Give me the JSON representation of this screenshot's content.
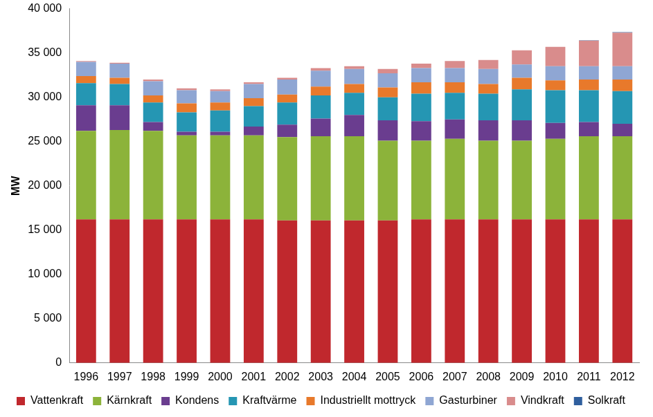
{
  "chart_data": {
    "type": "bar",
    "stacked": true,
    "grid": false,
    "legend": "bottom",
    "y_label": "MW",
    "categories": [
      "1996",
      "1997",
      "1998",
      "1999",
      "2000",
      "2001",
      "2002",
      "2003",
      "2004",
      "2005",
      "2006",
      "2007",
      "2008",
      "2009",
      "2010",
      "2011",
      "2012"
    ],
    "ylim": [
      0,
      40000
    ],
    "yticks": [
      {
        "value": 0,
        "label": "0"
      },
      {
        "value": 5000,
        "label": "5 000"
      },
      {
        "value": 10000,
        "label": "10 000"
      },
      {
        "value": 15000,
        "label": "15 000"
      },
      {
        "value": 20000,
        "label": "20 000"
      },
      {
        "value": 25000,
        "label": "25 000"
      },
      {
        "value": 30000,
        "label": "30 000"
      },
      {
        "value": 35000,
        "label": "35 000"
      },
      {
        "value": 40000,
        "label": "40 000"
      }
    ],
    "series": [
      {
        "name": "Vattenkraft",
        "color": "#c0282d",
        "values": [
          16200,
          16200,
          16200,
          16200,
          16200,
          16200,
          16100,
          16100,
          16100,
          16100,
          16200,
          16200,
          16200,
          16200,
          16200,
          16200,
          16200
        ]
      },
      {
        "name": "Kärnkraft",
        "color": "#8cb33a",
        "values": [
          10000,
          10100,
          10000,
          9500,
          9500,
          9500,
          9400,
          9500,
          9500,
          9000,
          8900,
          9100,
          8900,
          8900,
          9100,
          9400,
          9400
        ]
      },
      {
        "name": "Kondens",
        "color": "#6a3d8f",
        "values": [
          2900,
          2800,
          1000,
          400,
          400,
          1000,
          1400,
          2000,
          2400,
          2300,
          2200,
          2200,
          2300,
          2300,
          1800,
          1600,
          1400
        ]
      },
      {
        "name": "Kraftvärme",
        "color": "#2596b3",
        "values": [
          2500,
          2400,
          2200,
          2200,
          2400,
          2300,
          2500,
          2600,
          2500,
          2600,
          3100,
          3000,
          3000,
          3500,
          3700,
          3600,
          3700
        ]
      },
      {
        "name": "Industriellt mottryck",
        "color": "#e8792b",
        "values": [
          800,
          700,
          800,
          1000,
          900,
          900,
          900,
          1000,
          1000,
          1100,
          1300,
          1200,
          1100,
          1300,
          1100,
          1200,
          1300
        ]
      },
      {
        "name": "Gasturbiner",
        "color": "#8fa6d3",
        "values": [
          1600,
          1600,
          1600,
          1500,
          1300,
          1600,
          1700,
          1800,
          1700,
          1600,
          1600,
          1600,
          1700,
          1500,
          1600,
          1500,
          1500
        ]
      },
      {
        "name": "Vindkraft",
        "color": "#d98c8c",
        "values": [
          100,
          100,
          200,
          200,
          200,
          200,
          200,
          300,
          300,
          500,
          500,
          800,
          1000,
          1600,
          2200,
          2900,
          3800
        ]
      },
      {
        "name": "Solkraft",
        "color": "#2f5f9e",
        "values": [
          0,
          0,
          0,
          0,
          0,
          0,
          0,
          0,
          0,
          0,
          0,
          0,
          0,
          0,
          0,
          40,
          60
        ]
      }
    ]
  }
}
